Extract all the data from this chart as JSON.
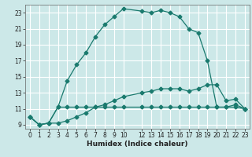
{
  "xlabel": "Humidex (Indice chaleur)",
  "bg_color": "#cce8e8",
  "grid_color": "#ffffff",
  "line_color": "#1a7a6e",
  "xlim": [
    -0.5,
    23.5
  ],
  "ylim": [
    8.5,
    24.0
  ],
  "yticks": [
    9,
    11,
    13,
    15,
    17,
    19,
    21,
    23
  ],
  "xticks": [
    0,
    1,
    2,
    3,
    4,
    5,
    6,
    7,
    8,
    9,
    10,
    12,
    13,
    14,
    15,
    16,
    17,
    18,
    19,
    20,
    21,
    22,
    23
  ],
  "line1_x": [
    0,
    1,
    2,
    3,
    4,
    5,
    6,
    7,
    8,
    9,
    10,
    12,
    13,
    14,
    15,
    16,
    17,
    18,
    19,
    20,
    21,
    22,
    23
  ],
  "line1_y": [
    10.0,
    9.0,
    9.2,
    11.2,
    14.5,
    16.5,
    18.0,
    20.0,
    21.5,
    22.5,
    23.5,
    23.2,
    23.0,
    23.3,
    23.0,
    22.5,
    21.0,
    20.5,
    17.0,
    11.2,
    11.2,
    11.5,
    11.0
  ],
  "line2_x": [
    0,
    1,
    2,
    3,
    4,
    5,
    6,
    7,
    8,
    9,
    10,
    12,
    13,
    14,
    15,
    16,
    17,
    18,
    19,
    20,
    21,
    22,
    23
  ],
  "line2_y": [
    10.0,
    9.0,
    9.2,
    11.2,
    11.2,
    11.2,
    11.2,
    11.2,
    11.2,
    11.2,
    11.2,
    11.2,
    11.2,
    11.2,
    11.2,
    11.2,
    11.2,
    11.2,
    11.2,
    11.2,
    11.2,
    11.2,
    11.0
  ],
  "line3_x": [
    0,
    1,
    2,
    3,
    4,
    5,
    6,
    7,
    8,
    9,
    10,
    12,
    13,
    14,
    15,
    16,
    17,
    18,
    19,
    20,
    21,
    22,
    23
  ],
  "line3_y": [
    10.0,
    9.0,
    9.2,
    9.2,
    9.5,
    10.0,
    10.5,
    11.2,
    11.5,
    12.0,
    12.5,
    13.0,
    13.2,
    13.5,
    13.5,
    13.5,
    13.2,
    13.5,
    14.0,
    14.0,
    12.0,
    12.2,
    11.0
  ]
}
